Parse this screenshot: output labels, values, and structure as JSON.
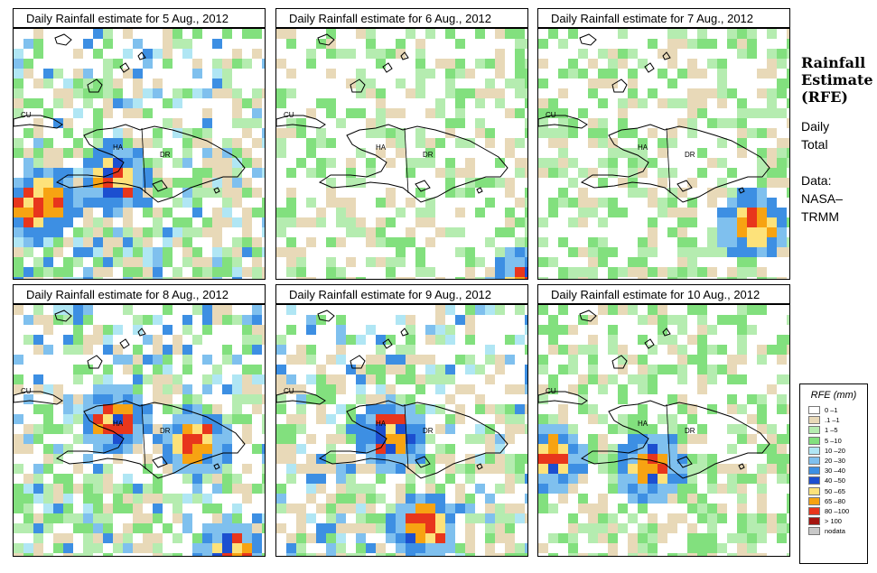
{
  "panels": [
    {
      "title": "Daily Rainfall estimate for  5 Aug., 2012",
      "date": "5 Aug., 2012",
      "intensity": 1.0
    },
    {
      "title": "Daily Rainfall estimate for  6 Aug., 2012",
      "date": "6 Aug., 2012",
      "intensity": 0.25
    },
    {
      "title": "Daily Rainfall estimate for  7 Aug., 2012",
      "date": "7 Aug., 2012",
      "intensity": 0.3
    },
    {
      "title": "Daily Rainfall estimate for  8 Aug., 2012",
      "date": "8 Aug., 2012",
      "intensity": 1.0
    },
    {
      "title": "Daily Rainfall estimate for  9 Aug., 2012",
      "date": "9 Aug., 2012",
      "intensity": 0.8
    },
    {
      "title": "Daily Rainfall estimate for  10 Aug., 2012",
      "date": "10 Aug., 2012",
      "intensity": 0.55
    }
  ],
  "map_labels": {
    "cuba": "CU",
    "haiti": "HA",
    "dominican_republic": "DR"
  },
  "side": {
    "title_line1": "Rainfall",
    "title_line2": "Estimate",
    "title_line3": "(RFE)",
    "period_line1": "Daily",
    "period_line2": "Total",
    "source_line1": "Data:",
    "source_line2": "NASA–",
    "source_line3": "TRMM"
  },
  "legend": {
    "title": "RFE (mm)",
    "items": [
      {
        "label": "0 –1",
        "color": "#ffffff"
      },
      {
        "label": ".1 –1",
        "color": "#e8d9b8"
      },
      {
        "label": "1 –5",
        "color": "#b5ecb0"
      },
      {
        "label": "5 –10",
        "color": "#82e07e"
      },
      {
        "label": "10 –20",
        "color": "#b0e6f4"
      },
      {
        "label": "20 –30",
        "color": "#7fc0ee"
      },
      {
        "label": "30 –40",
        "color": "#3d8fe3"
      },
      {
        "label": "40 –50",
        "color": "#1c4fd0"
      },
      {
        "label": "50 –65",
        "color": "#fde27a"
      },
      {
        "label": "65 –80",
        "color": "#f7a312"
      },
      {
        "label": "80 –100",
        "color": "#e8361c"
      },
      {
        "label": "> 100",
        "color": "#a4140f"
      },
      {
        "label": "nodata",
        "color": "#c8c8c8"
      }
    ]
  }
}
